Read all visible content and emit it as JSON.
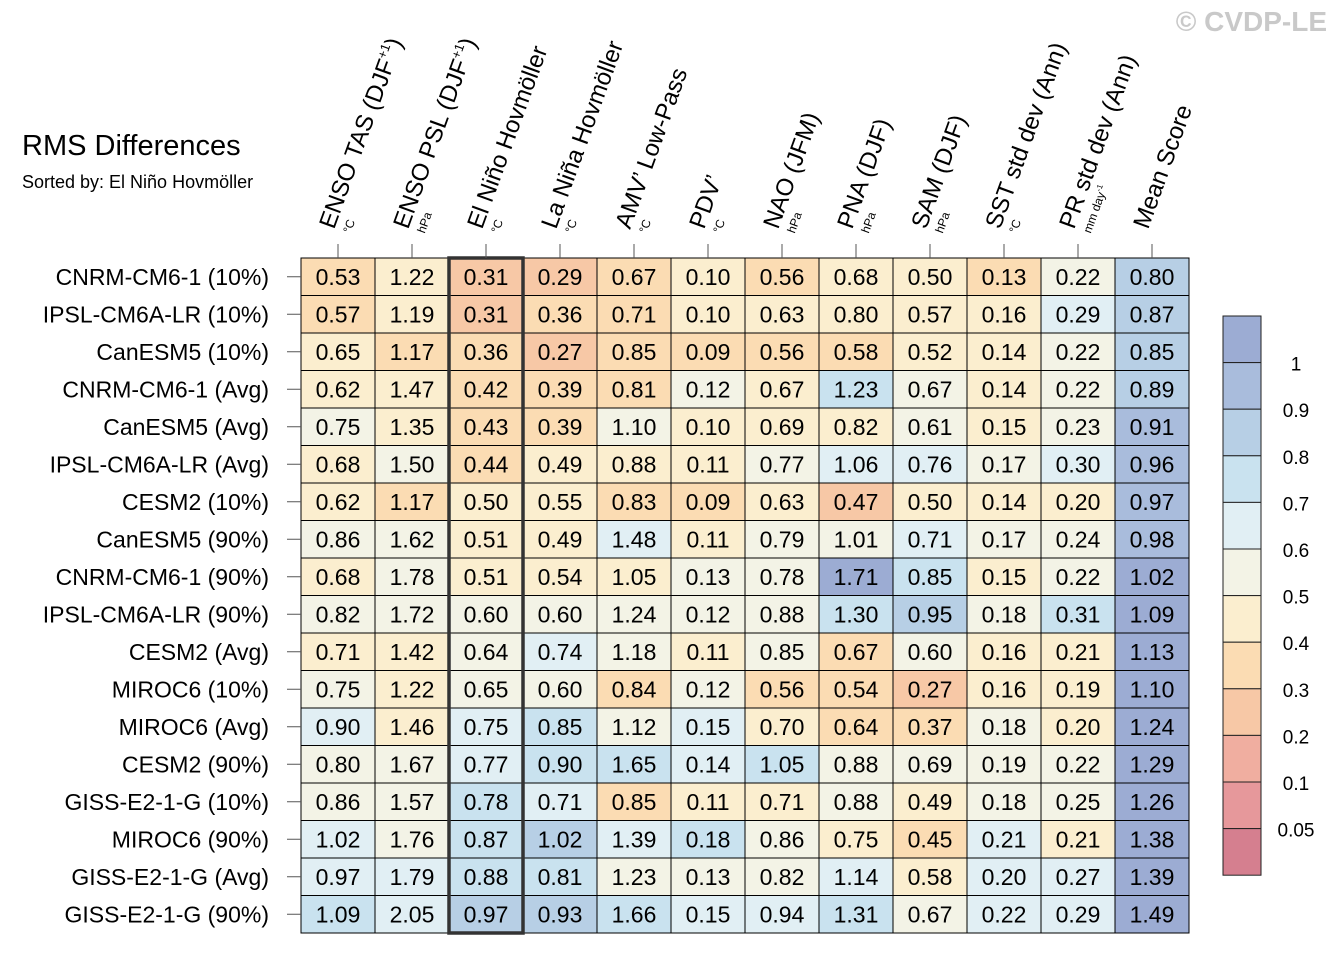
{
  "watermark": "© CVDP-LE",
  "chart_data": {
    "type": "heatmap",
    "title": "RMS Differences",
    "subtitle": "Sorted by: El Niño Hovmöller",
    "highlighted_column": "El Niño Hovmöller",
    "columns": [
      {
        "label": "ENSO TAS (DJF",
        "sup": "+1",
        "close": ")",
        "unit": "°C"
      },
      {
        "label": "ENSO PSL (DJF",
        "sup": "+1",
        "close": ")",
        "unit": "hPa"
      },
      {
        "label": "El Niño Hovmöller",
        "sup": "",
        "close": "",
        "unit": "°C"
      },
      {
        "label": "La Niña Hovmöller",
        "sup": "",
        "close": "",
        "unit": "°C"
      },
      {
        "label": "AMV’ Low-Pass",
        "sup": "",
        "close": "",
        "unit": "°C"
      },
      {
        "label": "PDV’",
        "sup": "",
        "close": "",
        "unit": "°C"
      },
      {
        "label": "NAO (JFM)",
        "sup": "",
        "close": "",
        "unit": "hPa"
      },
      {
        "label": "PNA (DJF)",
        "sup": "",
        "close": "",
        "unit": "hPa"
      },
      {
        "label": "SAM (DJF)",
        "sup": "",
        "close": "",
        "unit": "hPa"
      },
      {
        "label": "SST std dev (Ann)",
        "sup": "",
        "close": "",
        "unit": "°C"
      },
      {
        "label": "PR std dev (Ann)",
        "sup": "",
        "close": "",
        "unit": "mm day",
        "unit_sup": "-1"
      },
      {
        "label": "Mean Score",
        "sup": "",
        "close": "",
        "unit": ""
      }
    ],
    "rows": [
      "CNRM-CM6-1 (10%)",
      "IPSL-CM6A-LR (10%)",
      "CanESM5 (10%)",
      "CNRM-CM6-1 (Avg)",
      "CanESM5 (Avg)",
      "IPSL-CM6A-LR (Avg)",
      "CESM2 (10%)",
      "CanESM5 (90%)",
      "CNRM-CM6-1 (90%)",
      "IPSL-CM6A-LR (90%)",
      "CESM2 (Avg)",
      "MIROC6 (10%)",
      "MIROC6 (Avg)",
      "CESM2 (90%)",
      "GISS-E2-1-G (10%)",
      "MIROC6 (90%)",
      "GISS-E2-1-G (Avg)",
      "GISS-E2-1-G (90%)"
    ],
    "values": [
      [
        "0.53",
        "1.22",
        "0.31",
        "0.29",
        "0.67",
        "0.10",
        "0.56",
        "0.68",
        "0.50",
        "0.13",
        "0.22",
        "0.80"
      ],
      [
        "0.57",
        "1.19",
        "0.31",
        "0.36",
        "0.71",
        "0.10",
        "0.63",
        "0.80",
        "0.57",
        "0.16",
        "0.29",
        "0.87"
      ],
      [
        "0.65",
        "1.17",
        "0.36",
        "0.27",
        "0.85",
        "0.09",
        "0.56",
        "0.58",
        "0.52",
        "0.14",
        "0.22",
        "0.85"
      ],
      [
        "0.62",
        "1.47",
        "0.42",
        "0.39",
        "0.81",
        "0.12",
        "0.67",
        "1.23",
        "0.67",
        "0.14",
        "0.22",
        "0.89"
      ],
      [
        "0.75",
        "1.35",
        "0.43",
        "0.39",
        "1.10",
        "0.10",
        "0.69",
        "0.82",
        "0.61",
        "0.15",
        "0.23",
        "0.91"
      ],
      [
        "0.68",
        "1.50",
        "0.44",
        "0.49",
        "0.88",
        "0.11",
        "0.77",
        "1.06",
        "0.76",
        "0.17",
        "0.30",
        "0.96"
      ],
      [
        "0.62",
        "1.17",
        "0.50",
        "0.55",
        "0.83",
        "0.09",
        "0.63",
        "0.47",
        "0.50",
        "0.14",
        "0.20",
        "0.97"
      ],
      [
        "0.86",
        "1.62",
        "0.51",
        "0.49",
        "1.48",
        "0.11",
        "0.79",
        "1.01",
        "0.71",
        "0.17",
        "0.24",
        "0.98"
      ],
      [
        "0.68",
        "1.78",
        "0.51",
        "0.54",
        "1.05",
        "0.13",
        "0.78",
        "1.71",
        "0.85",
        "0.15",
        "0.22",
        "1.02"
      ],
      [
        "0.82",
        "1.72",
        "0.60",
        "0.60",
        "1.24",
        "0.12",
        "0.88",
        "1.30",
        "0.95",
        "0.18",
        "0.31",
        "1.09"
      ],
      [
        "0.71",
        "1.42",
        "0.64",
        "0.74",
        "1.18",
        "0.11",
        "0.85",
        "0.67",
        "0.60",
        "0.16",
        "0.21",
        "1.13"
      ],
      [
        "0.75",
        "1.22",
        "0.65",
        "0.60",
        "0.84",
        "0.12",
        "0.56",
        "0.54",
        "0.27",
        "0.16",
        "0.19",
        "1.10"
      ],
      [
        "0.90",
        "1.46",
        "0.75",
        "0.85",
        "1.12",
        "0.15",
        "0.70",
        "0.64",
        "0.37",
        "0.18",
        "0.20",
        "1.24"
      ],
      [
        "0.80",
        "1.67",
        "0.77",
        "0.90",
        "1.65",
        "0.14",
        "1.05",
        "0.88",
        "0.69",
        "0.19",
        "0.22",
        "1.29"
      ],
      [
        "0.86",
        "1.57",
        "0.78",
        "0.71",
        "0.85",
        "0.11",
        "0.71",
        "0.88",
        "0.49",
        "0.18",
        "0.25",
        "1.26"
      ],
      [
        "1.02",
        "1.76",
        "0.87",
        "1.02",
        "1.39",
        "0.18",
        "0.86",
        "0.75",
        "0.45",
        "0.21",
        "0.21",
        "1.38"
      ],
      [
        "0.97",
        "1.79",
        "0.88",
        "0.81",
        "1.23",
        "0.13",
        "0.82",
        "1.14",
        "0.58",
        "0.20",
        "0.27",
        "1.39"
      ],
      [
        "1.09",
        "2.05",
        "0.97",
        "0.93",
        "1.66",
        "0.15",
        "0.94",
        "1.31",
        "0.67",
        "0.22",
        "0.29",
        "1.49"
      ]
    ],
    "colorbar": {
      "labels": [
        "1",
        "0.9",
        "0.8",
        "0.7",
        "0.6",
        "0.5",
        "0.4",
        "0.3",
        "0.2",
        "0.1",
        "0.05"
      ],
      "thresholds": [
        0.05,
        0.1,
        0.2,
        0.3,
        0.4,
        0.5,
        0.6,
        0.7,
        0.8,
        0.9,
        1.0
      ],
      "colors": [
        "#d57f8f",
        "#e6989b",
        "#f0aea0",
        "#f7c8a6",
        "#fbdcb3",
        "#fbeecf",
        "#f3f3e6",
        "#e1eff4",
        "#c9e2ef",
        "#b7cfe5",
        "#a9bcdc",
        "#9cacd3"
      ]
    }
  }
}
